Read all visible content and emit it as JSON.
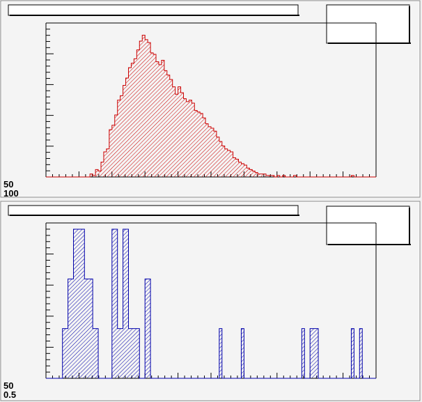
{
  "canvas": {
    "background": "#f4f4f4",
    "pad_border": "#000000"
  },
  "pads": [
    {
      "title_box_text": "",
      "stats_box_text": "",
      "axis_label_left": [
        "50",
        "100"
      ],
      "chart_data": {
        "type": "histogram",
        "series": [
          {
            "name": "",
            "color": "#cc0000",
            "fill_pattern": "hatched",
            "x_bins": 120,
            "values": [
              0,
              0,
              0,
              0,
              0,
              0,
              0,
              0,
              0,
              0,
              0,
              0,
              0,
              0,
              0,
              0,
              2,
              1,
              5,
              4,
              10,
              17,
              19,
              32,
              35,
              42,
              52,
              55,
              62,
              67,
              74,
              77,
              80,
              86,
              92,
              96,
              93,
              91,
              84,
              83,
              78,
              76,
              79,
              72,
              69,
              66,
              61,
              56,
              61,
              57,
              53,
              51,
              52,
              50,
              45,
              44,
              43,
              40,
              36,
              34,
              33,
              31,
              27,
              24,
              21,
              19,
              18,
              17,
              13,
              12,
              10,
              9,
              8,
              6,
              5,
              4,
              3,
              2,
              2,
              2,
              1,
              1,
              1,
              0,
              1,
              0,
              1,
              0,
              0,
              0,
              1,
              0,
              0,
              0,
              0,
              0,
              0,
              0,
              0,
              0,
              0,
              0,
              0,
              0,
              0,
              0,
              0,
              0,
              0,
              0,
              0,
              1,
              0,
              0,
              0,
              0,
              0,
              0,
              0,
              0
            ],
            "peak": 100
          }
        ]
      }
    },
    {
      "title_box_text": "",
      "stats_box_text": "",
      "axis_label_left": [
        "50",
        "0.5"
      ],
      "chart_data": {
        "type": "histogram",
        "series": [
          {
            "name": "",
            "color": "#0000aa",
            "fill_pattern": "hatched",
            "x_bins": 120,
            "values": [
              0,
              0,
              0,
              0,
              0,
              0,
              2,
              2,
              4,
              4,
              6,
              6,
              6,
              6,
              4,
              4,
              4,
              2,
              2,
              0,
              0,
              0,
              0,
              0,
              6,
              6,
              2,
              2,
              6,
              6,
              2,
              2,
              2,
              2,
              0,
              0,
              4,
              4,
              0,
              0,
              0,
              0,
              0,
              0,
              0,
              0,
              0,
              0,
              0,
              0,
              0,
              0,
              0,
              0,
              0,
              0,
              0,
              0,
              0,
              0,
              0,
              0,
              0,
              2,
              0,
              0,
              0,
              0,
              0,
              0,
              0,
              2,
              0,
              0,
              0,
              0,
              0,
              0,
              0,
              0,
              0,
              0,
              0,
              0,
              0,
              0,
              0,
              0,
              0,
              0,
              0,
              0,
              0,
              2,
              0,
              0,
              2,
              2,
              2,
              0,
              0,
              0,
              0,
              0,
              0,
              0,
              0,
              0,
              0,
              0,
              0,
              2,
              0,
              0,
              2,
              0,
              0,
              0,
              0,
              0
            ],
            "peak": 6
          }
        ]
      }
    }
  ]
}
